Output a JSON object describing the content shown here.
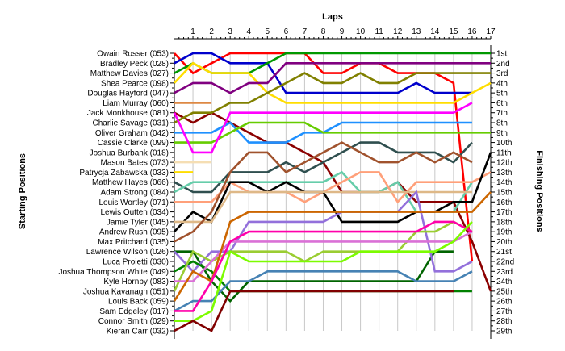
{
  "chart_data": {
    "type": "line",
    "title": "",
    "xlabel": "Laps",
    "ylabel_left": "Starting Positions",
    "ylabel_right": "Finishing Positions",
    "laps": [
      1,
      2,
      3,
      4,
      5,
      6,
      7,
      8,
      9,
      10,
      11,
      12,
      13,
      14,
      15,
      16,
      17
    ],
    "x_range": [
      0,
      17
    ],
    "y_range": [
      1,
      29
    ],
    "starting_positions": [
      "Owain Rosser (053)",
      "Bradley Peck (028)",
      "Matthew Davies (027)",
      "Shea Pearce (098)",
      "Douglas Hayford (047)",
      "Liam Murray (060)",
      "Jack Monkhouse (081)",
      "Charlie Savage (031)",
      "Oliver Graham (042)",
      "Cassie Clarke (099)",
      "Joshua Burbank (018)",
      "Mason Bates (073)",
      "Patrycja Zabawska (033)",
      "Matthew Hayes (066)",
      "Adam Strong (084)",
      "Louis Wortley (071)",
      "Lewis Outten (034)",
      "Jamie Tyler (045)",
      "Andrew Rush (095)",
      "Max Pritchard (035)",
      "Lawrence Wilson (026)",
      "Luca Proietti (030)",
      "Joshua Thompson White (049)",
      "Kyle Hornby (083)",
      "Joshua Kavanagh (051)",
      "Louis Back (059)",
      "Sam Edgeley (017)",
      "Connor Smith (029)",
      "Kieran Carr (032)"
    ],
    "finishing_positions": [
      "1st",
      "2nd",
      "3rd",
      "4th",
      "5th",
      "6th",
      "7th",
      "8th",
      "9th",
      "10th",
      "11th",
      "12th",
      "13th",
      "14th",
      "15th",
      "16th",
      "17th",
      "18th",
      "19th",
      "20th",
      "21st",
      "22nd",
      "23rd",
      "24th",
      "25th",
      "26th",
      "27th",
      "28th",
      "29th"
    ],
    "series": [
      {
        "color": "#ff0000",
        "positions": [
          1,
          3,
          2,
          1,
          1,
          1,
          1,
          1,
          3,
          3,
          2,
          2,
          3,
          3,
          3,
          4,
          22,
          null
        ]
      },
      {
        "color": "#0000cc",
        "positions": [
          2,
          1,
          1,
          2,
          2,
          2,
          5,
          5,
          5,
          5,
          5,
          5,
          5,
          4,
          5,
          5,
          5,
          null
        ]
      },
      {
        "color": "#009900",
        "positions": [
          3,
          2,
          3,
          3,
          3,
          2,
          1,
          1,
          1,
          1,
          1,
          1,
          1,
          1,
          1,
          1,
          1,
          1
        ]
      },
      {
        "color": "#ffdd00",
        "positions": [
          4,
          2,
          3,
          3,
          3,
          5,
          6,
          6,
          6,
          6,
          6,
          6,
          6,
          6,
          6,
          6,
          5,
          4
        ]
      },
      {
        "color": "#800080",
        "positions": [
          5,
          4,
          4,
          5,
          4,
          4,
          2,
          2,
          2,
          2,
          2,
          2,
          2,
          2,
          2,
          2,
          2,
          2
        ]
      },
      {
        "color": "#dd8844",
        "positions": [
          6,
          6,
          6,
          null
        ]
      },
      {
        "color": "#8b0000",
        "positions": [
          7,
          8,
          7,
          8,
          9,
          10,
          10,
          11,
          12,
          15,
          15,
          15,
          14,
          16,
          16,
          16,
          20,
          25
        ]
      },
      {
        "color": "#808000",
        "positions": [
          8,
          7,
          7,
          6,
          6,
          5,
          4,
          3,
          4,
          4,
          3,
          4,
          4,
          3,
          3,
          3,
          3,
          3
        ]
      },
      {
        "color": "#1e90ff",
        "positions": [
          9,
          9,
          9,
          8,
          10,
          10,
          10,
          9,
          9,
          8,
          8,
          8,
          8,
          8,
          8,
          8,
          8,
          null
        ]
      },
      {
        "color": "#66cc00",
        "positions": [
          10,
          10,
          10,
          9,
          8,
          8,
          8,
          8,
          9,
          9,
          9,
          9,
          9,
          9,
          9,
          9,
          9,
          9
        ]
      },
      {
        "color": "#ff00ff",
        "positions": [
          7,
          11,
          11,
          7,
          7,
          7,
          7,
          7,
          7,
          7,
          7,
          7,
          7,
          7,
          7,
          7,
          6,
          null
        ]
      },
      {
        "color": "#f5deb3",
        "positions": [
          12,
          12,
          12,
          null
        ]
      },
      {
        "color": "#ffdd00",
        "positions": [
          13,
          13,
          null
        ]
      },
      {
        "color": "#2f4f4f",
        "positions": [
          14,
          15,
          15,
          13,
          13,
          13,
          12,
          13,
          12,
          11,
          10,
          10,
          11,
          11,
          11,
          12,
          10,
          null
        ]
      },
      {
        "color": "#66cdaa",
        "positions": [
          15,
          14,
          14,
          14,
          14,
          14,
          14,
          14,
          14,
          13,
          15,
          15,
          14,
          17,
          17,
          17,
          14,
          null
        ]
      },
      {
        "color": "#ffa07a",
        "positions": [
          16,
          16,
          16,
          14,
          15,
          15,
          15,
          16,
          15,
          14,
          13,
          13,
          16,
          14,
          14,
          14,
          14,
          13
        ]
      },
      {
        "color": "#000000",
        "positions": [
          19,
          17,
          18,
          14,
          14,
          15,
          14,
          15,
          15,
          18,
          18,
          18,
          18,
          17,
          17,
          16,
          16,
          11
        ]
      },
      {
        "color": "#deb887",
        "positions": [
          18,
          18,
          18,
          15,
          15,
          15,
          15,
          15,
          15,
          15,
          15,
          15,
          15,
          15,
          15,
          15,
          15,
          null
        ]
      },
      {
        "color": "#a0522d",
        "positions": [
          20,
          19,
          17,
          13,
          11,
          11,
          13,
          12,
          11,
          10,
          11,
          12,
          12,
          11,
          12,
          11,
          12,
          null
        ]
      },
      {
        "color": "#006400",
        "positions": [
          21,
          21,
          24,
          26,
          24,
          24,
          24,
          24,
          24,
          24,
          24,
          24,
          24,
          24,
          21,
          21,
          null
        ]
      },
      {
        "color": "#9370db",
        "positions": [
          21,
          23,
          21,
          21,
          18,
          18,
          18,
          18,
          18,
          17,
          17,
          17,
          17,
          15,
          23,
          23,
          22,
          null
        ]
      },
      {
        "color": "#008000",
        "positions": [
          23,
          22,
          23,
          25,
          25,
          25,
          25,
          25,
          25,
          25,
          25,
          25,
          25,
          25,
          25,
          25,
          25,
          null
        ]
      },
      {
        "color": "#9acd32",
        "positions": [
          25,
          21,
          22,
          21,
          21,
          21,
          21,
          22,
          21,
          21,
          21,
          21,
          21,
          19,
          19,
          18,
          19,
          null
        ]
      },
      {
        "color": "#da70d6",
        "positions": [
          24,
          24,
          22,
          20,
          20,
          20,
          20,
          20,
          20,
          20,
          20,
          20,
          20,
          20,
          20,
          20,
          19,
          null
        ]
      },
      {
        "color": "#cc6600",
        "positions": [
          26,
          23,
          24,
          18,
          17,
          17,
          17,
          17,
          17,
          17,
          17,
          17,
          17,
          17,
          17,
          17,
          17,
          15
        ]
      },
      {
        "color": "#4682b4",
        "positions": [
          27,
          26,
          26,
          24,
          24,
          23,
          23,
          23,
          23,
          23,
          23,
          23,
          23,
          24,
          24,
          24,
          23,
          null
        ]
      },
      {
        "color": "#ff00aa",
        "positions": [
          27,
          27,
          24,
          20,
          19,
          19,
          19,
          19,
          19,
          19,
          19,
          19,
          19,
          19,
          18,
          18,
          19,
          null
        ]
      },
      {
        "color": "#7cfc00",
        "positions": [
          28,
          28,
          27,
          21,
          22,
          22,
          22,
          22,
          22,
          22,
          21,
          21,
          21,
          21,
          21,
          20,
          18,
          null
        ]
      },
      {
        "color": "#800000",
        "positions": [
          29,
          28,
          29,
          25,
          25,
          25,
          25,
          25,
          25,
          25,
          25,
          25,
          25,
          25,
          25,
          25,
          null
        ]
      }
    ]
  }
}
